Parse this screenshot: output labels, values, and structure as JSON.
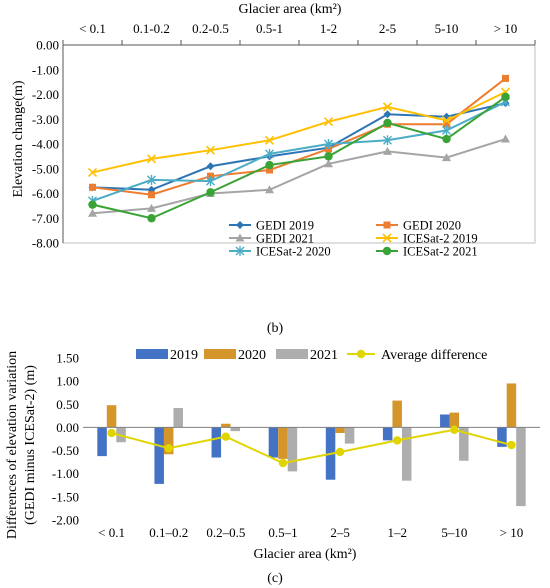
{
  "chart_data": [
    {
      "panel_label": "(b)",
      "type": "line",
      "title": "Glacier area (km²)",
      "ylabel": "Elevation change(m)",
      "categories": [
        "< 0.1",
        "0.1-0.2",
        "0.2-0.5",
        "0.5-1",
        "1-2",
        "2-5",
        "5-10",
        "> 10"
      ],
      "ylim": [
        -8.0,
        0.0
      ],
      "yticks": [
        "0.00",
        "-1.00",
        "-2.00",
        "-3.00",
        "-4.00",
        "-5.00",
        "-6.00",
        "-7.00",
        "-8.00"
      ],
      "x_axis_position": "top",
      "grid": false,
      "legend_placement": "bottom-right",
      "series": [
        {
          "name": "GEDI 2019",
          "color": "#2E75B6",
          "marker": "diamond",
          "values": [
            -5.75,
            -5.85,
            -4.9,
            -4.5,
            -4.15,
            -2.8,
            -2.9,
            -2.35
          ]
        },
        {
          "name": "GEDI 2020",
          "color": "#ED7D31",
          "marker": "square",
          "values": [
            -5.75,
            -6.05,
            -5.3,
            -5.05,
            -4.2,
            -3.2,
            -3.2,
            -1.35
          ]
        },
        {
          "name": "GEDI 2021",
          "color": "#A5A5A5",
          "marker": "triangle",
          "values": [
            -6.8,
            -6.6,
            -6.0,
            -5.85,
            -4.8,
            -4.3,
            -4.55,
            -3.8
          ]
        },
        {
          "name": "ICESat-2 2019",
          "color": "#FFC000",
          "marker": "x",
          "values": [
            -5.15,
            -4.6,
            -4.25,
            -3.85,
            -3.1,
            -2.5,
            -3.05,
            -1.9
          ]
        },
        {
          "name": "ICESat-2 2020",
          "color": "#4BACC6",
          "marker": "asterisk",
          "values": [
            -6.3,
            -5.45,
            -5.5,
            -4.4,
            -4.0,
            -3.85,
            -3.45,
            -2.3
          ]
        },
        {
          "name": "ICESat-2 2021",
          "color": "#3AA336",
          "marker": "circle",
          "values": [
            -6.45,
            -7.0,
            -5.95,
            -4.85,
            -4.5,
            -3.15,
            -3.8,
            -2.1
          ]
        }
      ]
    },
    {
      "panel_label": "(c)",
      "type": "bar",
      "xlabel": "Glacier area (km²)",
      "ylabel_line1": "Differences of elevation variation",
      "ylabel_line2": "(GEDI minus ICESat-2) (m)",
      "categories": [
        "< 0.1",
        "0.1–0.2",
        "0.2–0.5",
        "0.5–1",
        "2–5",
        "1–2",
        "5–10",
        "> 10"
      ],
      "ylim": [
        -2.0,
        1.5
      ],
      "yticks": [
        "1.50",
        "1.00",
        "0.50",
        "0.00",
        "-0.50",
        "-1.00",
        "-1.50",
        "-2.00"
      ],
      "grid": false,
      "legend_placement": "top",
      "series": [
        {
          "name": "2019",
          "color": "#4472C4",
          "values": [
            -0.62,
            -1.22,
            -0.65,
            -0.65,
            -1.13,
            -0.28,
            0.28,
            -0.42
          ]
        },
        {
          "name": "2020",
          "color": "#D4952B",
          "values": [
            0.48,
            -0.58,
            0.08,
            -0.68,
            -0.12,
            0.58,
            0.32,
            0.95
          ]
        },
        {
          "name": "2021",
          "color": "#ADADAD",
          "values": [
            -0.32,
            0.42,
            -0.08,
            -0.95,
            -0.35,
            -1.15,
            -0.72,
            -1.7
          ]
        }
      ],
      "line_series": {
        "name": "Average difference",
        "color": "#E0D500",
        "values": [
          -0.12,
          -0.45,
          -0.2,
          -0.77,
          -0.53,
          -0.28,
          -0.05,
          -0.38
        ]
      }
    }
  ]
}
